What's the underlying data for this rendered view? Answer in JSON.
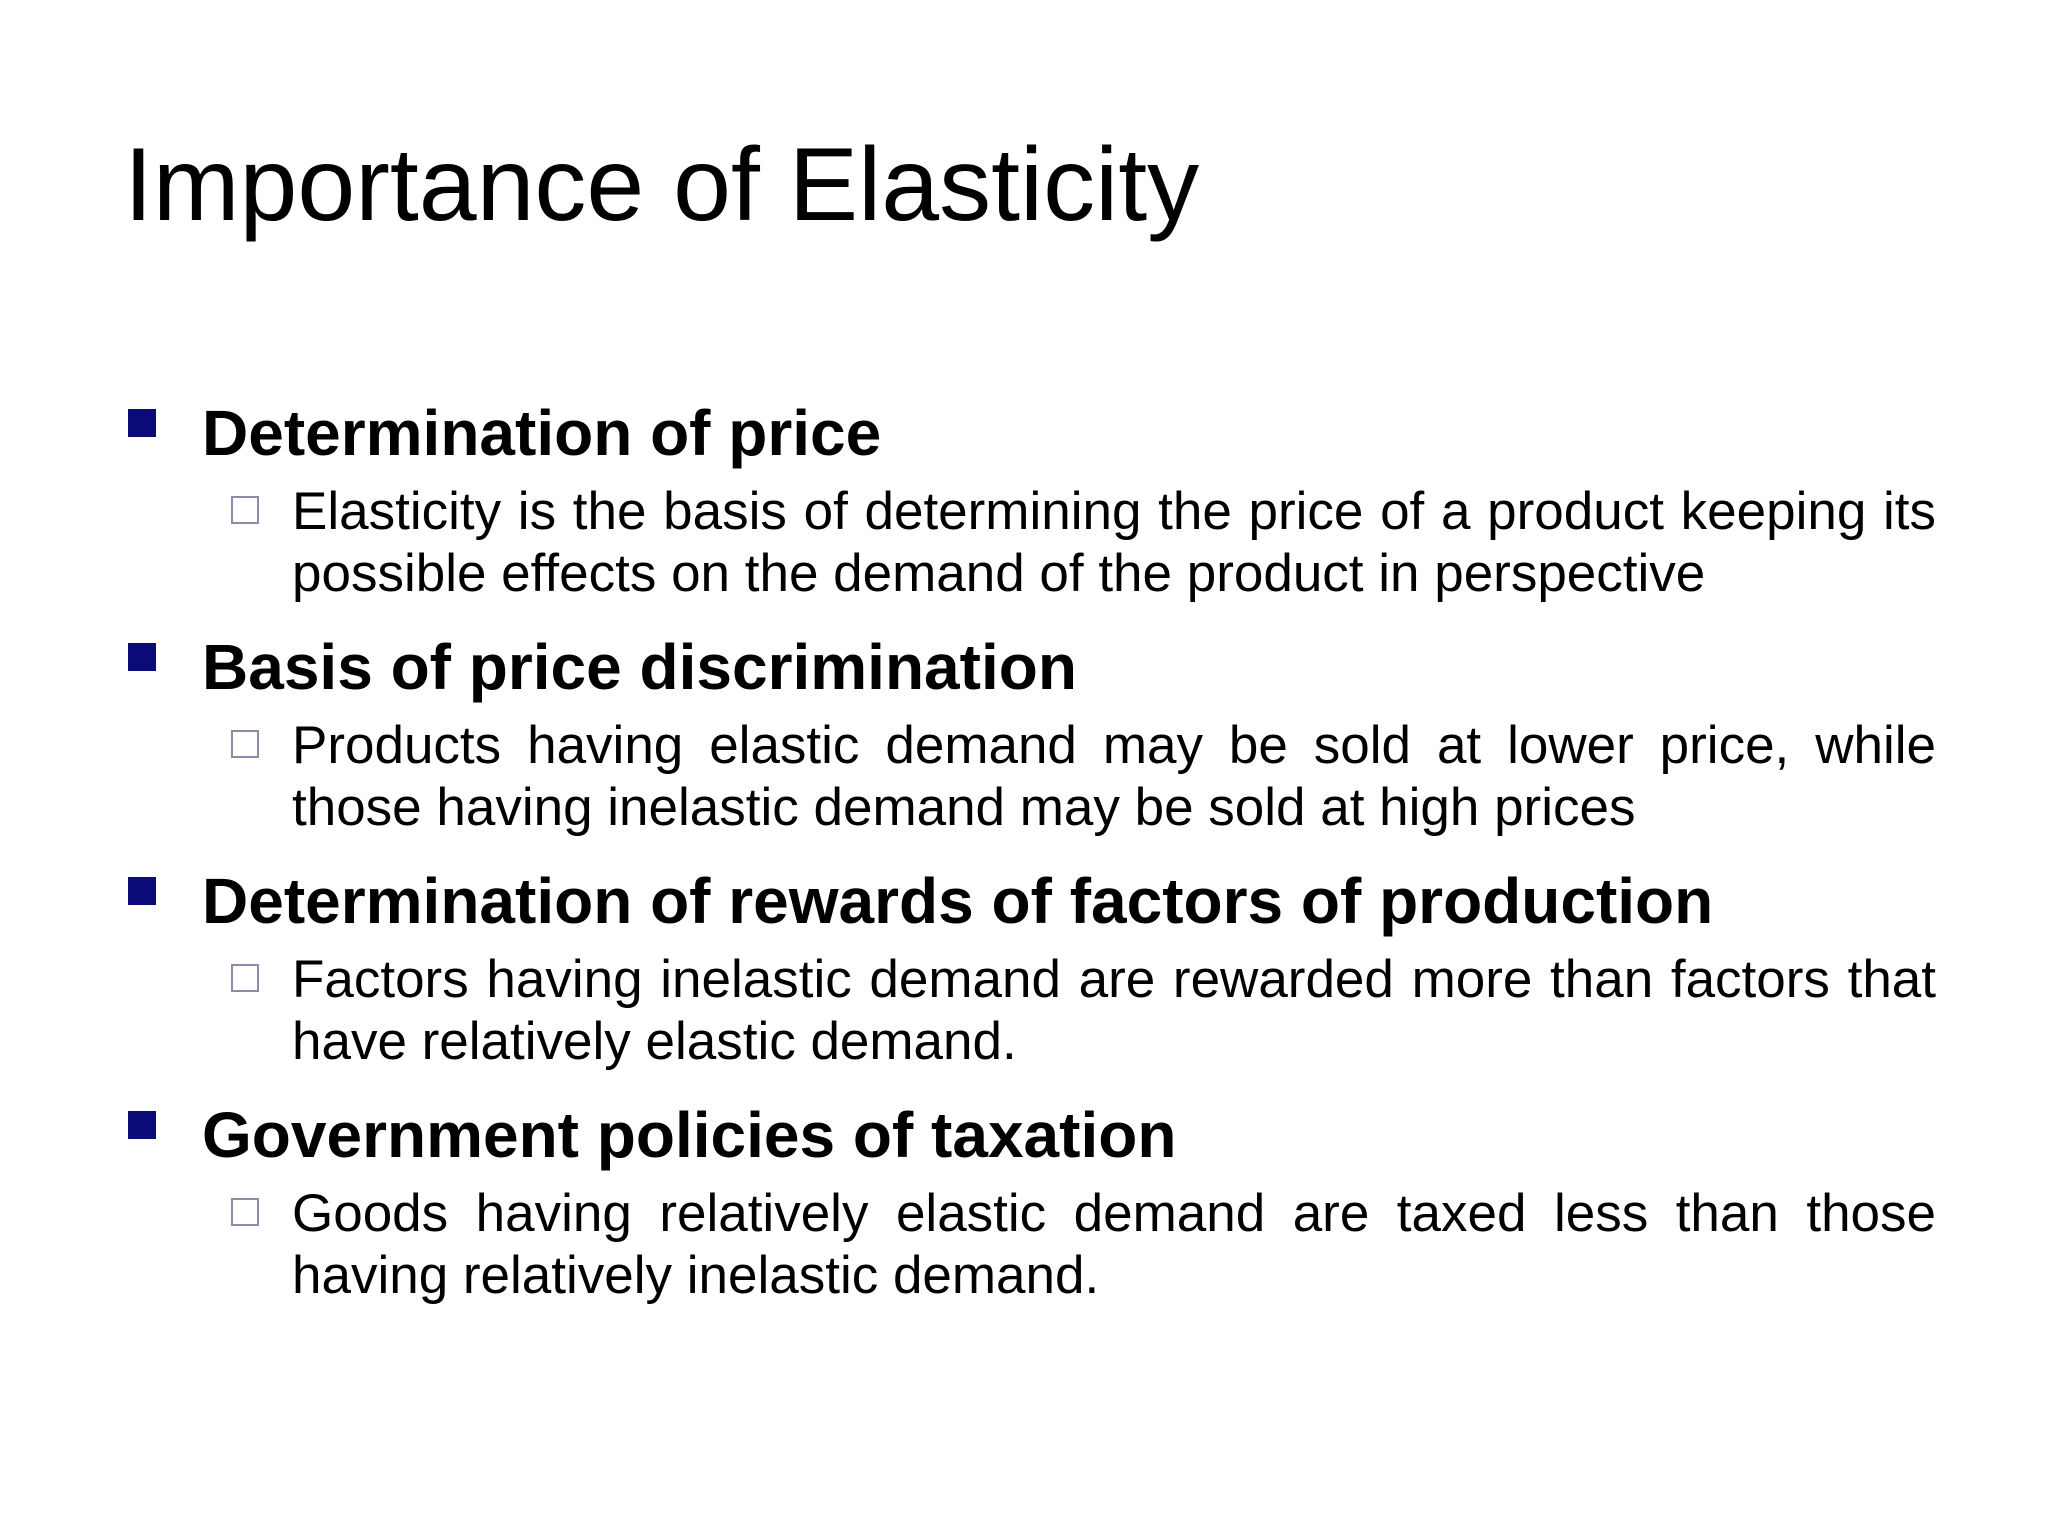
{
  "slide": {
    "title": "Importance of Elasticity",
    "bullet_color": "#0a0a78",
    "items": [
      {
        "heading": "Determination of price",
        "detail": "Elasticity is the basis of determining the price of a product keeping its possible effects on the demand of the product in perspective"
      },
      {
        "heading": "Basis of price discrimination",
        "detail": "Products having elastic demand may be sold at lower price, while those having inelastic demand may be sold at high prices"
      },
      {
        "heading": "Determination of rewards of factors of production",
        "detail": "Factors having inelastic demand are rewarded more than factors that have relatively elastic demand."
      },
      {
        "heading": "Government policies of taxation",
        "detail": "Goods having relatively elastic demand are taxed less than those having relatively inelastic demand."
      }
    ]
  }
}
